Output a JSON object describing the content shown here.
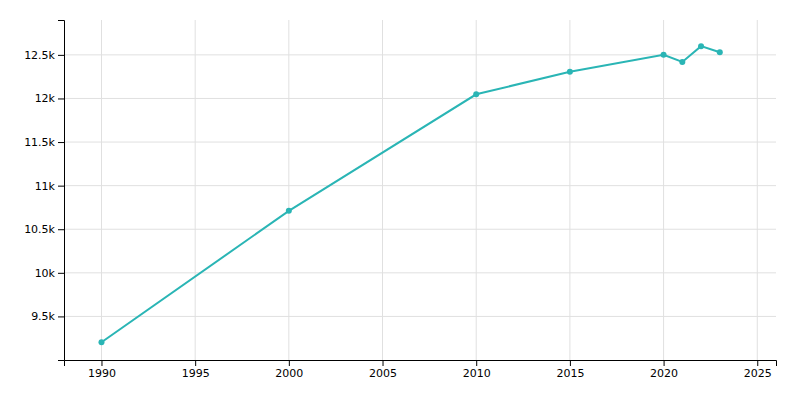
{
  "chart_data": {
    "type": "line",
    "x": [
      1990,
      2000,
      2010,
      2015,
      2020,
      2021,
      2022,
      2023
    ],
    "values": [
      9203,
      10711,
      12048,
      12306,
      12500,
      12419,
      12600,
      12530
    ],
    "color": "#2ab5b5",
    "marker": "circle",
    "xlim": [
      1988,
      2026
    ],
    "ylim": [
      9000,
      12900
    ],
    "xticks": [
      1990,
      1995,
      2000,
      2005,
      2010,
      2015,
      2020,
      2025
    ],
    "yticks": [
      {
        "value": 9500,
        "label": "9.5k"
      },
      {
        "value": 10000,
        "label": "10k"
      },
      {
        "value": 10500,
        "label": "10.5k"
      },
      {
        "value": 11000,
        "label": "11k"
      },
      {
        "value": 11500,
        "label": "11.5k"
      },
      {
        "value": 12000,
        "label": "12k"
      },
      {
        "value": 12500,
        "label": "12.5k"
      }
    ],
    "grid": true
  }
}
